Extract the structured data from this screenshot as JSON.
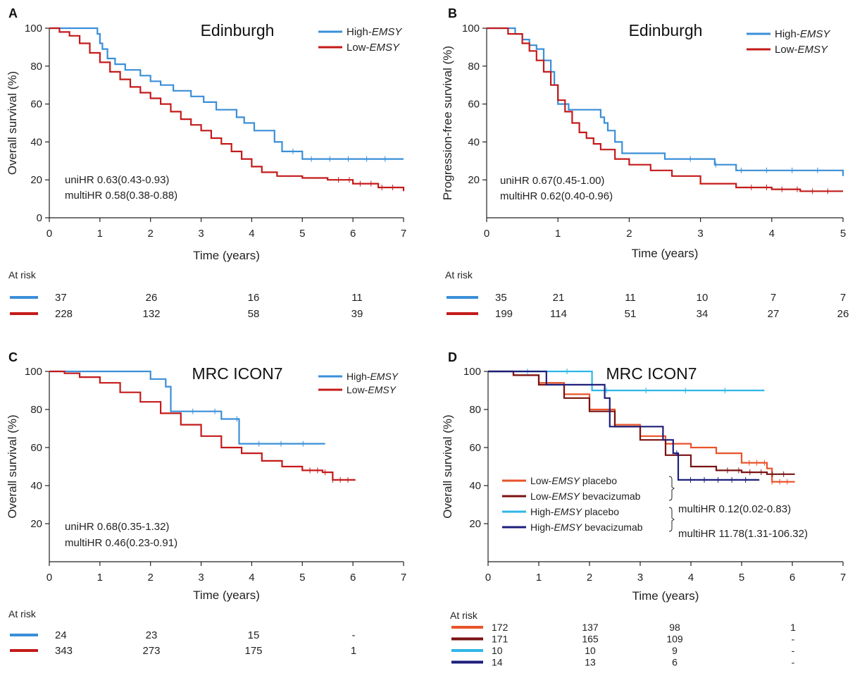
{
  "colors": {
    "high_emsy": "#3a8fd8",
    "low_emsy": "#c41a1a",
    "low_placebo": "#e8532a",
    "low_bev": "#7a1212",
    "high_placebo": "#2fb6e6",
    "high_bev": "#1c1e7a",
    "axis": "#222222"
  },
  "common": {
    "at_risk_label": "At risk",
    "x_label": "Time (years)"
  },
  "chart_data": [
    {
      "panel_letter": "A",
      "type": "line",
      "title": "Edinburgh",
      "xlabel": "Time (years)",
      "ylabel": "Overall survival (%)",
      "xlim": [
        0,
        7
      ],
      "ylim": [
        0,
        100
      ],
      "xticks": [
        "0",
        "1",
        "2",
        "3",
        "4",
        "5",
        "6",
        "7"
      ],
      "yticks": [
        "0",
        "20",
        "40",
        "60",
        "80",
        "100"
      ],
      "legend_position": "top-right",
      "legend": [
        {
          "prefix": "High-",
          "italic": "EMSY",
          "suffix": "",
          "color_key": "high_emsy"
        },
        {
          "prefix": "Low-",
          "italic": "EMSY",
          "suffix": "",
          "color_key": "low_emsy"
        }
      ],
      "annotations": [
        "uniHR 0.63(0.43-0.93)",
        "multiHR 0.58(0.38-0.88)"
      ],
      "series": [
        {
          "name": "High-EMSY",
          "color_key": "high_emsy",
          "x": [
            0,
            0.6,
            0.95,
            1.0,
            1.05,
            1.15,
            1.3,
            1.5,
            1.8,
            2.0,
            2.2,
            2.45,
            2.8,
            3.05,
            3.3,
            3.7,
            3.85,
            4.05,
            4.45,
            4.6,
            5.0,
            7.0
          ],
          "y": [
            100,
            100,
            97,
            92,
            89,
            84,
            81,
            78,
            75,
            72,
            70,
            67,
            64,
            61,
            57,
            53,
            50,
            46,
            40,
            35,
            31,
            31
          ]
        },
        {
          "name": "Low-EMSY",
          "color_key": "low_emsy",
          "x": [
            0,
            0.2,
            0.4,
            0.6,
            0.8,
            1.0,
            1.2,
            1.4,
            1.6,
            1.8,
            2.0,
            2.2,
            2.4,
            2.6,
            2.8,
            3.0,
            3.2,
            3.4,
            3.6,
            3.8,
            4.0,
            4.2,
            4.5,
            5.0,
            5.5,
            6.0,
            6.5,
            7.0
          ],
          "y": [
            100,
            98,
            96,
            92,
            87,
            82,
            77,
            73,
            69,
            66,
            63,
            60,
            56,
            52,
            49,
            46,
            42,
            39,
            35,
            31,
            27,
            24,
            22,
            21,
            20,
            18,
            16,
            14
          ]
        }
      ],
      "at_risk": [
        {
          "color_key": "high_emsy",
          "values": [
            "37",
            "26",
            "16",
            "11"
          ]
        },
        {
          "color_key": "low_emsy",
          "values": [
            "228",
            "132",
            "58",
            "39"
          ]
        }
      ]
    },
    {
      "panel_letter": "B",
      "type": "line",
      "title": "Edinburgh",
      "xlabel": "Time (years)",
      "ylabel": "Progression-free survival (%)",
      "xlim": [
        0,
        5
      ],
      "ylim": [
        0,
        100
      ],
      "xticks": [
        "0",
        "1",
        "2",
        "3",
        "4",
        "5"
      ],
      "yticks": [
        "20",
        "40",
        "60",
        "80",
        "100"
      ],
      "legend_position": "top-right",
      "legend": [
        {
          "prefix": "High-",
          "italic": "EMSY",
          "suffix": "",
          "color_key": "high_emsy"
        },
        {
          "prefix": "Low-",
          "italic": "EMSY",
          "suffix": "",
          "color_key": "low_emsy"
        }
      ],
      "annotations": [
        "uniHR 0.67(0.45-1.00)",
        "multiHR 0.62(0.40-0.96)"
      ],
      "series": [
        {
          "name": "High-EMSY",
          "color_key": "high_emsy",
          "x": [
            0,
            0.3,
            0.4,
            0.5,
            0.6,
            0.7,
            0.8,
            0.9,
            0.95,
            1.0,
            1.15,
            1.5,
            1.6,
            1.65,
            1.7,
            1.8,
            1.9,
            2.5,
            3.2,
            3.5,
            5.0
          ],
          "y": [
            100,
            100,
            97,
            94,
            91,
            89,
            83,
            77,
            70,
            60,
            57,
            57,
            53,
            50,
            46,
            40,
            34,
            31,
            28,
            25,
            22
          ]
        },
        {
          "name": "Low-EMSY",
          "color_key": "low_emsy",
          "x": [
            0,
            0.3,
            0.5,
            0.6,
            0.7,
            0.8,
            0.9,
            1.0,
            1.1,
            1.2,
            1.3,
            1.4,
            1.5,
            1.6,
            1.8,
            2.0,
            2.3,
            2.6,
            3.0,
            3.5,
            4.0,
            4.4,
            5.0
          ],
          "y": [
            100,
            97,
            92,
            88,
            83,
            77,
            70,
            62,
            56,
            50,
            45,
            42,
            39,
            36,
            31,
            28,
            25,
            22,
            18,
            16,
            15,
            14,
            14
          ]
        }
      ],
      "at_risk": [
        {
          "color_key": "high_emsy",
          "values": [
            "35",
            "21",
            "11",
            "10",
            "7",
            "7"
          ]
        },
        {
          "color_key": "low_emsy",
          "values": [
            "199",
            "114",
            "51",
            "34",
            "27",
            "26"
          ]
        }
      ]
    },
    {
      "panel_letter": "C",
      "type": "line",
      "title": "MRC ICON7",
      "xlabel": "Time (years)",
      "ylabel": "Overall survival (%)",
      "xlim": [
        0,
        7
      ],
      "ylim": [
        0,
        100
      ],
      "xticks": [
        "0",
        "1",
        "2",
        "3",
        "4",
        "5",
        "6",
        "7"
      ],
      "yticks": [
        "20",
        "40",
        "60",
        "80",
        "100"
      ],
      "legend_position": "top-right",
      "legend": [
        {
          "prefix": "High-",
          "italic": "EMSY",
          "suffix": "",
          "color_key": "high_emsy"
        },
        {
          "prefix": "Low-",
          "italic": "EMSY",
          "suffix": "",
          "color_key": "low_emsy"
        }
      ],
      "annotations": [
        "uniHR 0.68(0.35-1.32)",
        "multiHR 0.46(0.23-0.91)"
      ],
      "series": [
        {
          "name": "High-EMSY",
          "color_key": "high_emsy",
          "x": [
            0,
            1.15,
            2.0,
            2.3,
            2.4,
            3.4,
            3.75,
            5.45
          ],
          "y": [
            100,
            100,
            96,
            92,
            79,
            75,
            62,
            62
          ]
        },
        {
          "name": "Low-EMSY",
          "color_key": "low_emsy",
          "x": [
            0,
            0.3,
            0.6,
            1.0,
            1.4,
            1.8,
            2.2,
            2.6,
            3.0,
            3.4,
            3.8,
            4.2,
            4.6,
            5.0,
            5.4,
            5.6,
            6.05
          ],
          "y": [
            100,
            99,
            97,
            94,
            89,
            84,
            78,
            72,
            66,
            60,
            57,
            53,
            50,
            48,
            47,
            43,
            43
          ]
        }
      ],
      "at_risk": [
        {
          "color_key": "high_emsy",
          "values": [
            "24",
            "23",
            "15",
            "-"
          ]
        },
        {
          "color_key": "low_emsy",
          "values": [
            "343",
            "273",
            "175",
            "1"
          ]
        }
      ]
    },
    {
      "panel_letter": "D",
      "type": "line",
      "title": "MRC ICON7",
      "xlabel": "Time (years)",
      "ylabel": "Overall survival (%)",
      "xlim": [
        0,
        7
      ],
      "ylim": [
        0,
        100
      ],
      "xticks": [
        "0",
        "1",
        "2",
        "3",
        "4",
        "5",
        "6",
        "7"
      ],
      "yticks": [
        "20",
        "40",
        "60",
        "80",
        "100"
      ],
      "legend_position": "bottom-left",
      "legend": [
        {
          "prefix": "Low-",
          "italic": "EMSY",
          "suffix": " placebo",
          "color_key": "low_placebo"
        },
        {
          "prefix": "Low-",
          "italic": "EMSY",
          "suffix": " bevacizumab",
          "color_key": "low_bev"
        },
        {
          "prefix": "High-",
          "italic": "EMSY",
          "suffix": " placebo",
          "color_key": "high_placebo"
        },
        {
          "prefix": "High-",
          "italic": "EMSY",
          "suffix": " bevacizumab",
          "color_key": "high_bev"
        }
      ],
      "annotations": [
        "multiHR 0.12(0.02-0.83)",
        "multiHR 11.78(1.31-106.32)"
      ],
      "series": [
        {
          "name": "Low-EMSY placebo",
          "color_key": "low_placebo",
          "x": [
            0,
            0.5,
            1.0,
            1.5,
            2.0,
            2.5,
            3.0,
            3.5,
            4.0,
            4.5,
            5.0,
            5.5,
            5.6,
            6.05
          ],
          "y": [
            100,
            98,
            94,
            88,
            80,
            72,
            66,
            62,
            60,
            57,
            52,
            49,
            42,
            42
          ]
        },
        {
          "name": "Low-EMSY bevacizumab",
          "color_key": "low_bev",
          "x": [
            0,
            0.5,
            1.0,
            1.5,
            2.0,
            2.5,
            3.0,
            3.5,
            4.0,
            4.5,
            5.0,
            5.5,
            6.05
          ],
          "y": [
            100,
            98,
            93,
            86,
            79,
            71,
            64,
            56,
            50,
            48,
            47,
            46,
            46
          ]
        },
        {
          "name": "High-EMSY placebo",
          "color_key": "high_placebo",
          "x": [
            0,
            2.0,
            2.05,
            5.45
          ],
          "y": [
            100,
            100,
            90,
            90
          ]
        },
        {
          "name": "High-EMSY bevacizumab",
          "color_key": "high_bev",
          "x": [
            0,
            1.15,
            2.3,
            2.4,
            3.45,
            3.65,
            3.75,
            5.35
          ],
          "y": [
            100,
            93,
            86,
            71,
            64,
            57,
            43,
            43
          ]
        }
      ],
      "at_risk": [
        {
          "color_key": "low_placebo",
          "values": [
            "172",
            "137",
            "98",
            "1"
          ]
        },
        {
          "color_key": "low_bev",
          "values": [
            "171",
            "165",
            "109",
            "-"
          ]
        },
        {
          "color_key": "high_placebo",
          "values": [
            "10",
            "10",
            "9",
            "-"
          ]
        },
        {
          "color_key": "high_bev",
          "values": [
            "14",
            "13",
            "6",
            "-"
          ]
        }
      ]
    }
  ]
}
